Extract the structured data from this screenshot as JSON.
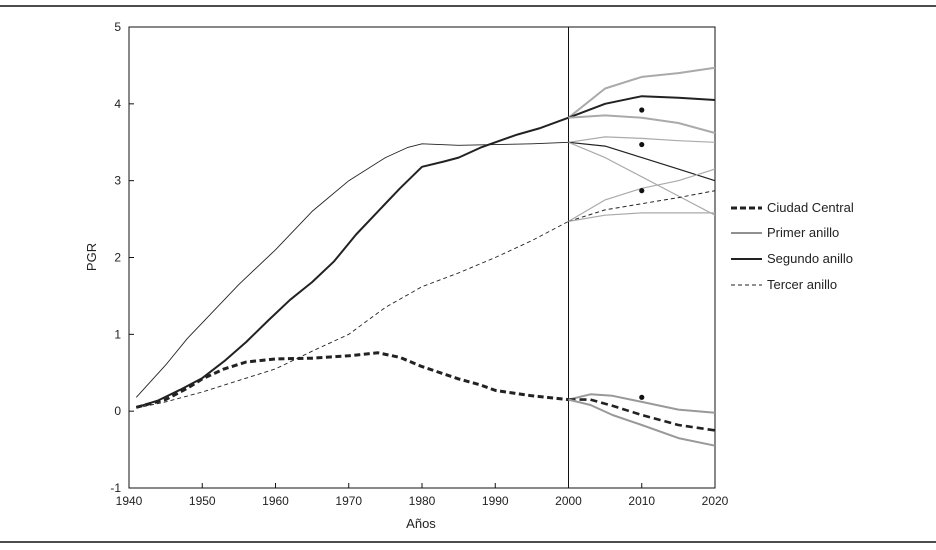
{
  "chart_data": {
    "type": "line",
    "xlabel": "Años",
    "ylabel": "PGR",
    "xlim": [
      1940,
      2020
    ],
    "ylim": [
      -1,
      5
    ],
    "xticks": [
      1940,
      1950,
      1960,
      1970,
      1980,
      1990,
      2000,
      2010,
      2020
    ],
    "yticks": [
      -1,
      0,
      1,
      2,
      3,
      4,
      5
    ],
    "xtick_labels": [
      "1940",
      "1950",
      "1960",
      "1970",
      "1980",
      "1990",
      "2000",
      "2010",
      "2020"
    ],
    "ytick_labels": [
      "-1",
      "0",
      "1",
      "2",
      "3",
      "4",
      "5"
    ],
    "grid": false,
    "legend_position": "right",
    "vline_x": 2000,
    "series": [
      {
        "name": "Ciudad Central",
        "style": "dashed-thick",
        "color": "#222222",
        "x": [
          1941,
          1945,
          1948,
          1950,
          1953,
          1956,
          1960,
          1965,
          1970,
          1974,
          1977,
          1980,
          1985,
          1988,
          1990,
          1995,
          2000
        ],
        "y": [
          0.05,
          0.15,
          0.3,
          0.42,
          0.55,
          0.64,
          0.68,
          0.69,
          0.72,
          0.76,
          0.7,
          0.58,
          0.42,
          0.34,
          0.27,
          0.2,
          0.15
        ]
      },
      {
        "name": "Primer anillo",
        "style": "thin",
        "color": "#222222",
        "x": [
          1941,
          1945,
          1948,
          1950,
          1955,
          1960,
          1965,
          1970,
          1975,
          1978,
          1980,
          1985,
          1990,
          1995,
          2000
        ],
        "y": [
          0.18,
          0.6,
          0.95,
          1.15,
          1.65,
          2.1,
          2.6,
          3.0,
          3.3,
          3.43,
          3.48,
          3.46,
          3.47,
          3.48,
          3.5
        ]
      },
      {
        "name": "Segundo anillo",
        "style": "thick",
        "color": "#222222",
        "x": [
          1941,
          1944,
          1947,
          1950,
          1953,
          1956,
          1959,
          1962,
          1965,
          1968,
          1971,
          1974,
          1977,
          1980,
          1983,
          1985,
          1988,
          1990,
          1993,
          1996,
          2000
        ],
        "y": [
          0.05,
          0.14,
          0.28,
          0.43,
          0.65,
          0.9,
          1.18,
          1.45,
          1.68,
          1.95,
          2.3,
          2.6,
          2.9,
          3.18,
          3.25,
          3.3,
          3.43,
          3.5,
          3.6,
          3.68,
          3.82
        ]
      },
      {
        "name": "Tercer anillo",
        "style": "dashed-thin",
        "color": "#222222",
        "x": [
          1941,
          1945,
          1950,
          1955,
          1960,
          1965,
          1970,
          1975,
          1980,
          1985,
          1990,
          1995,
          2000
        ],
        "y": [
          0.04,
          0.12,
          0.25,
          0.4,
          0.55,
          0.78,
          1.0,
          1.35,
          1.62,
          1.8,
          2.0,
          2.22,
          2.47
        ]
      }
    ],
    "projections": [
      {
        "group": "Segundo anillo",
        "color": "#aaaaaa",
        "width": 2,
        "x": [
          2000,
          2005,
          2010,
          2015,
          2020
        ],
        "y": [
          3.82,
          4.2,
          4.35,
          4.4,
          4.47
        ]
      },
      {
        "group": "Segundo anillo",
        "color": "#222222",
        "width": 2,
        "x": [
          2000,
          2005,
          2010,
          2015,
          2020
        ],
        "y": [
          3.82,
          4.0,
          4.1,
          4.08,
          4.05
        ]
      },
      {
        "group": "Segundo anillo",
        "color": "#aaaaaa",
        "width": 2,
        "x": [
          2000,
          2005,
          2010,
          2015,
          2020
        ],
        "y": [
          3.82,
          3.85,
          3.82,
          3.75,
          3.62
        ]
      },
      {
        "group": "Primer anillo",
        "color": "#aaaaaa",
        "width": 1.2,
        "x": [
          2000,
          2005,
          2010,
          2015,
          2020
        ],
        "y": [
          3.5,
          3.57,
          3.55,
          3.52,
          3.5
        ]
      },
      {
        "group": "Primer anillo",
        "color": "#222222",
        "width": 1.2,
        "x": [
          2000,
          2005,
          2010,
          2015,
          2020
        ],
        "y": [
          3.5,
          3.45,
          3.3,
          3.15,
          3.0
        ]
      },
      {
        "group": "Primer anillo",
        "color": "#aaaaaa",
        "width": 1.2,
        "x": [
          2000,
          2005,
          2010,
          2015,
          2020
        ],
        "y": [
          3.5,
          3.3,
          3.05,
          2.8,
          2.55
        ]
      },
      {
        "group": "Tercer anillo",
        "color": "#aaaaaa",
        "width": 1.2,
        "x": [
          2000,
          2005,
          2010,
          2015,
          2020
        ],
        "y": [
          2.47,
          2.75,
          2.9,
          3.0,
          3.15
        ]
      },
      {
        "group": "Tercer anillo",
        "color": "#222222",
        "width": 1.0,
        "dash": "4,3",
        "x": [
          2000,
          2005,
          2010,
          2015,
          2020
        ],
        "y": [
          2.47,
          2.62,
          2.7,
          2.78,
          2.87
        ]
      },
      {
        "group": "Tercer anillo",
        "color": "#aaaaaa",
        "width": 1.2,
        "x": [
          2000,
          2005,
          2010,
          2015,
          2020
        ],
        "y": [
          2.47,
          2.55,
          2.58,
          2.58,
          2.58
        ]
      },
      {
        "group": "Ciudad Central",
        "color": "#999999",
        "width": 2,
        "x": [
          2000,
          2003,
          2006,
          2010,
          2015,
          2020
        ],
        "y": [
          0.15,
          0.22,
          0.2,
          0.12,
          0.02,
          -0.02
        ]
      },
      {
        "group": "Ciudad Central",
        "color": "#222222",
        "width": 2.6,
        "dash": "7,4",
        "x": [
          2000,
          2003,
          2006,
          2010,
          2015,
          2020
        ],
        "y": [
          0.15,
          0.15,
          0.07,
          -0.05,
          -0.18,
          -0.25
        ]
      },
      {
        "group": "Ciudad Central",
        "color": "#999999",
        "width": 2,
        "x": [
          2000,
          2003,
          2006,
          2010,
          2015,
          2020
        ],
        "y": [
          0.15,
          0.08,
          -0.05,
          -0.18,
          -0.35,
          -0.45
        ]
      }
    ],
    "points": [
      {
        "x": 2010,
        "y": 3.92
      },
      {
        "x": 2010,
        "y": 3.47
      },
      {
        "x": 2010,
        "y": 2.87
      },
      {
        "x": 2010,
        "y": 0.18
      }
    ]
  }
}
